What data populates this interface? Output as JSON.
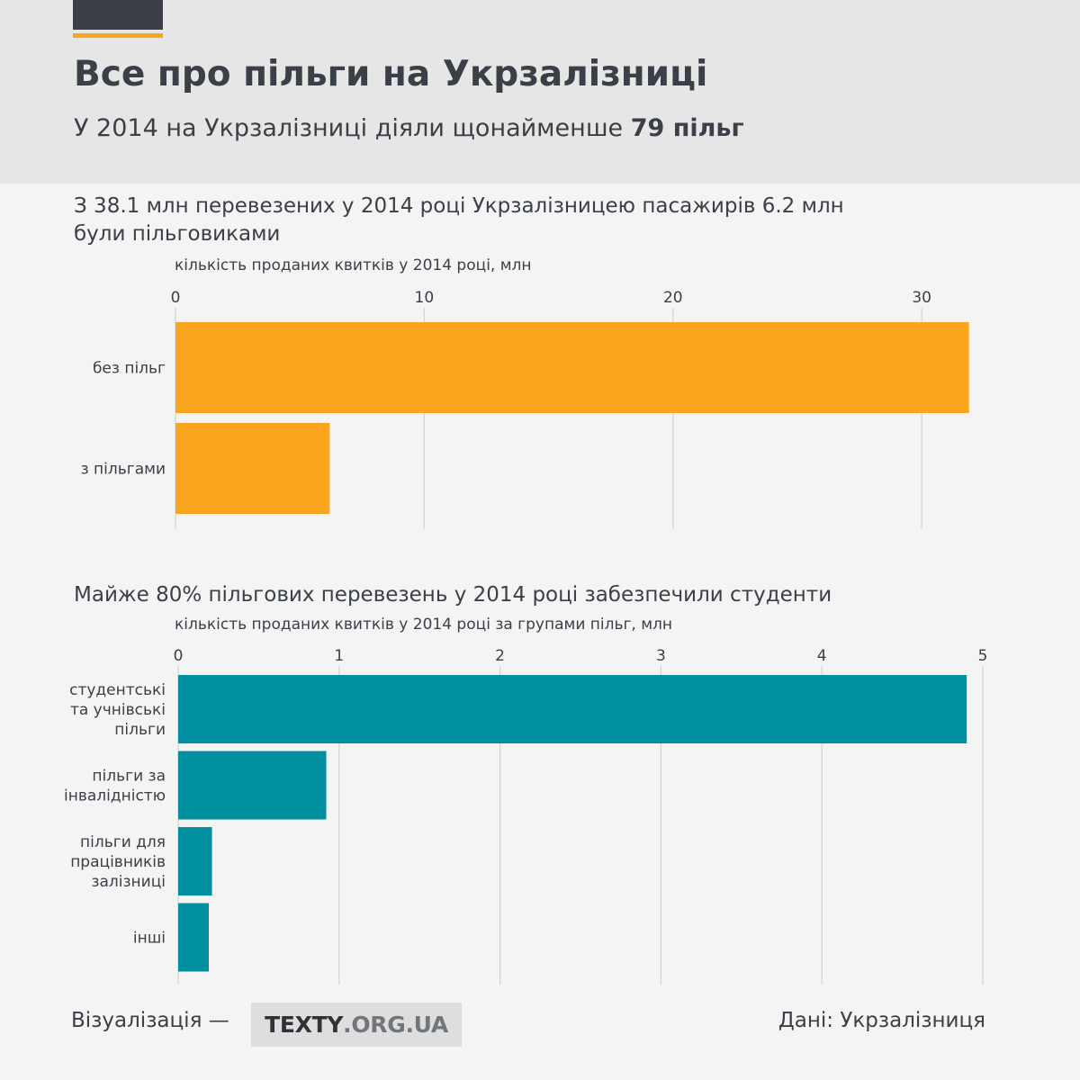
{
  "header": {
    "title": "Все про пільги на Укрзалізниці",
    "subtitle_text": "У 2014 на Укрзалізниці діяли щонайменше",
    "subtitle_bold": "79 пільг",
    "accent_color": "#f9a61e",
    "dark_color": "#3c3f47"
  },
  "chart_data": [
    {
      "type": "bar",
      "orientation": "horizontal",
      "title": "З 38.1 млн перевезених у 2014 році Укрзалізницею пасажирів 6.2 млн були пільговиками",
      "xlabel": "кількість проданих квитків у 2014 році, млн",
      "categories": [
        "без пільг",
        "з пільгами"
      ],
      "values": [
        31.9,
        6.2
      ],
      "xlim": [
        0,
        32.6
      ],
      "ticks": [
        "0",
        "10",
        "20",
        "30"
      ],
      "grid": true,
      "color": "#f9a61e"
    },
    {
      "type": "bar",
      "orientation": "horizontal",
      "title": "Майже 80% пільгових перевезень у 2014 році забезпечили студенти",
      "xlabel": "кількість проданих квитків у 2014 році за групами пільг, млн",
      "categories": [
        [
          "студентські",
          "та учнівські",
          "пільги"
        ],
        [
          "пільги за",
          "інвалідністю"
        ],
        [
          "пільги для",
          "працівників",
          "залізниці"
        ],
        [
          "інші"
        ]
      ],
      "values": [
        4.9,
        0.92,
        0.21,
        0.19
      ],
      "xlim": [
        0,
        5
      ],
      "ticks": [
        "0",
        "1",
        "2",
        "3",
        "4",
        "5"
      ],
      "grid": true,
      "color": "#008f9f"
    }
  ],
  "footer": {
    "visualization_label": "Візуалізація —",
    "brand_main": "TEXTY",
    "brand_suffix": ".ORG.UA",
    "source": "Дані: Укрзалізниця"
  }
}
